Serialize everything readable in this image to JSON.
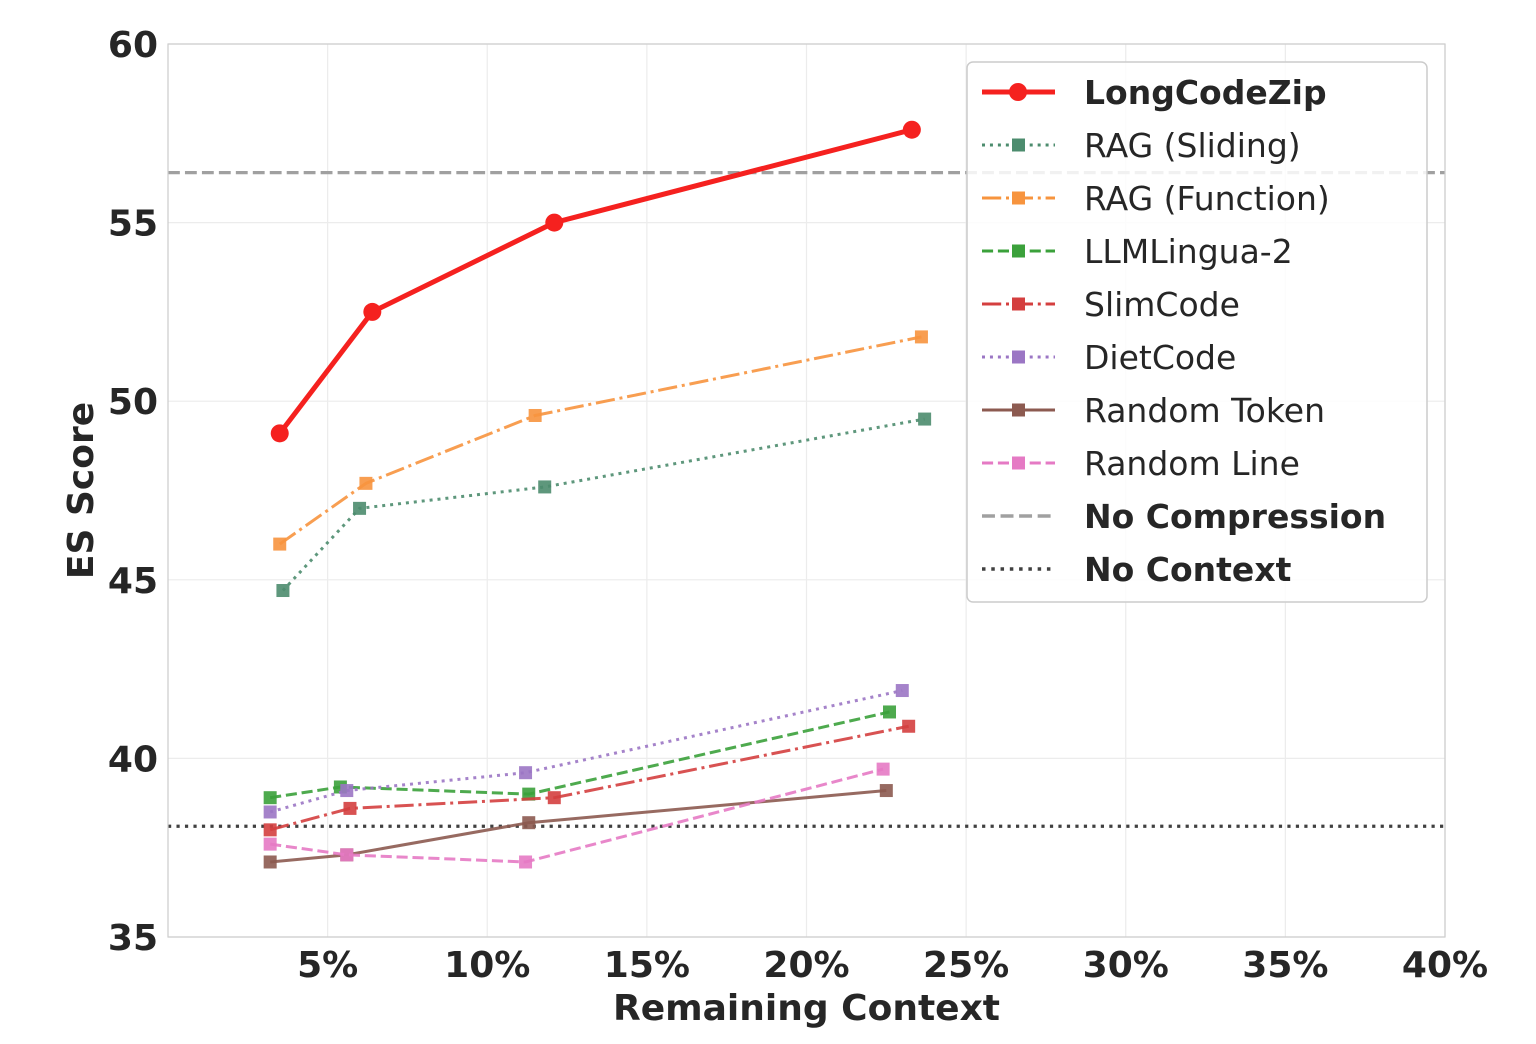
{
  "chart_data": {
    "type": "line",
    "xlabel": "Remaining Context",
    "ylabel": "ES Score",
    "xlim": [
      0,
      40
    ],
    "ylim": [
      35,
      60
    ],
    "x_ticks": [
      5,
      10,
      15,
      20,
      25,
      30,
      35,
      40
    ],
    "x_tick_labels": [
      "5%",
      "10%",
      "15%",
      "20%",
      "25%",
      "30%",
      "35%",
      "40%"
    ],
    "y_ticks": [
      35,
      40,
      45,
      50,
      55,
      60
    ],
    "y_tick_labels": [
      "35",
      "40",
      "45",
      "50",
      "55",
      "60"
    ],
    "grid": true,
    "legend_position": "top-right",
    "series": [
      {
        "name": "LongCodeZip",
        "color": "#f5211f",
        "style": "solid",
        "marker": "circle",
        "bold": true,
        "points": [
          [
            3.5,
            49.1
          ],
          [
            6.4,
            52.5
          ],
          [
            12.1,
            55.0
          ],
          [
            23.3,
            57.6
          ]
        ]
      },
      {
        "name": "RAG (Sliding)",
        "color": "#4c8c6e",
        "style": "dotted",
        "marker": "square",
        "bold": false,
        "points": [
          [
            3.6,
            44.7
          ],
          [
            6.0,
            47.0
          ],
          [
            11.8,
            47.6
          ],
          [
            23.7,
            49.5
          ]
        ]
      },
      {
        "name": "RAG (Function)",
        "color": "#f7943e",
        "style": "dashdot",
        "marker": "square",
        "bold": false,
        "points": [
          [
            3.5,
            46.0
          ],
          [
            6.2,
            47.7
          ],
          [
            11.5,
            49.6
          ],
          [
            23.6,
            51.8
          ]
        ]
      },
      {
        "name": "LLMLingua-2",
        "color": "#3ba13b",
        "style": "dashed",
        "marker": "square",
        "bold": false,
        "points": [
          [
            3.2,
            38.9
          ],
          [
            5.4,
            39.2
          ],
          [
            11.3,
            39.0
          ],
          [
            22.6,
            41.3
          ]
        ]
      },
      {
        "name": "SlimCode",
        "color": "#d43f3f",
        "style": "dashdot",
        "marker": "square",
        "bold": false,
        "points": [
          [
            3.2,
            38.0
          ],
          [
            5.7,
            38.6
          ],
          [
            12.1,
            38.9
          ],
          [
            23.2,
            40.9
          ]
        ]
      },
      {
        "name": "DietCode",
        "color": "#9b76c4",
        "style": "dotted",
        "marker": "square",
        "bold": false,
        "points": [
          [
            3.2,
            38.5
          ],
          [
            5.6,
            39.1
          ],
          [
            11.2,
            39.6
          ],
          [
            23.0,
            41.9
          ]
        ]
      },
      {
        "name": "Random Token",
        "color": "#8c5a50",
        "style": "solid",
        "marker": "square",
        "bold": false,
        "points": [
          [
            3.2,
            37.1
          ],
          [
            5.6,
            37.3
          ],
          [
            11.3,
            38.2
          ],
          [
            22.5,
            39.1
          ]
        ]
      },
      {
        "name": "Random Line",
        "color": "#e57ac4",
        "style": "dashed",
        "marker": "square",
        "bold": false,
        "points": [
          [
            3.2,
            37.6
          ],
          [
            5.6,
            37.3
          ],
          [
            11.2,
            37.1
          ],
          [
            22.4,
            39.7
          ]
        ]
      }
    ],
    "reference_lines": [
      {
        "name": "No Compression",
        "value": 56.4,
        "color": "#a0a0a0",
        "style": "dashed",
        "bold": true
      },
      {
        "name": "No Context",
        "value": 38.1,
        "color": "#404040",
        "style": "dotted",
        "bold": true
      }
    ]
  }
}
